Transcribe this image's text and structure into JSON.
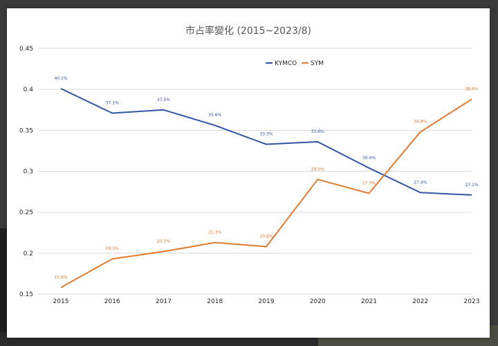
{
  "chart_data": {
    "type": "line",
    "title": "市占率變化 (2015~2023/8)",
    "categories": [
      "2015",
      "2016",
      "2017",
      "2018",
      "2019",
      "2020",
      "2021",
      "2022",
      "2023"
    ],
    "ylim": [
      0.15,
      0.45
    ],
    "yticks": [
      "0.45",
      "0.4",
      "0.35",
      "0.3",
      "0.25",
      "0.2",
      "0.15"
    ],
    "grid": true,
    "legend_position": "top-right",
    "series": [
      {
        "name": "KYMCO",
        "color": "#2f55a4",
        "values": [
          0.401,
          0.371,
          0.375,
          0.356,
          0.333,
          0.336,
          0.304,
          0.274,
          0.271
        ],
        "labels": [
          "40.1%",
          "37.1%",
          "37.5%",
          "35.6%",
          "33.3%",
          "33.6%",
          "30.4%",
          "27.4%",
          "27.1%"
        ]
      },
      {
        "name": "SYM",
        "color": "#e07a2e",
        "values": [
          0.158,
          0.193,
          0.202,
          0.213,
          0.208,
          0.29,
          0.273,
          0.348,
          0.388
        ],
        "labels": [
          "15.8%",
          "19.3%",
          "20.2%",
          "21.3%",
          "20.8%",
          "29.0%",
          "27.3%",
          "34.8%",
          "38.8%"
        ]
      }
    ]
  }
}
